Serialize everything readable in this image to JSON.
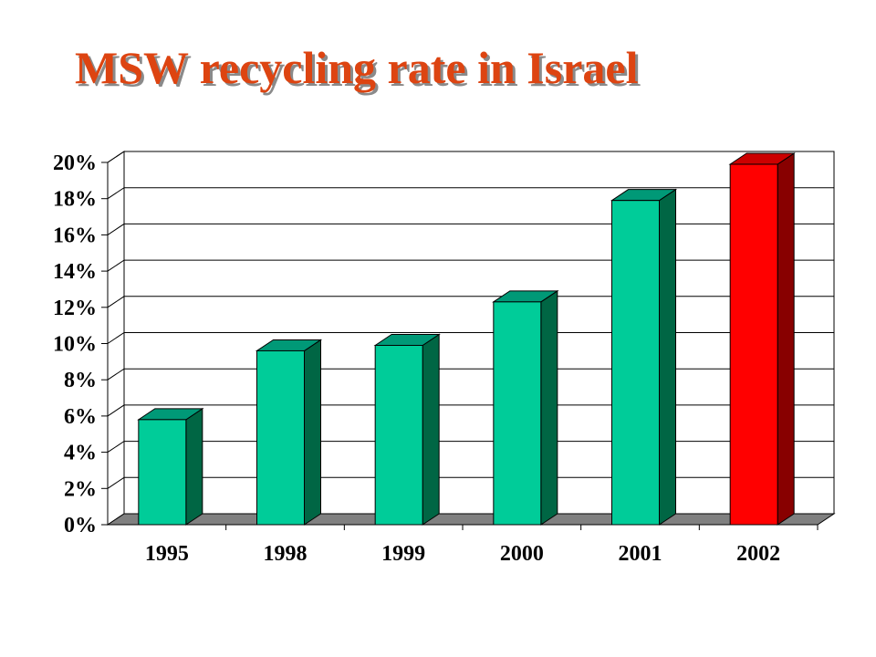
{
  "title": "MSW recycling rate in Israel",
  "chart_data": {
    "type": "bar",
    "categories": [
      "1995",
      "1998",
      "1999",
      "2000",
      "2001",
      "2002"
    ],
    "values": [
      5.8,
      9.6,
      9.9,
      12.3,
      17.9,
      19.9
    ],
    "unit": "%",
    "ylim": [
      0,
      20
    ],
    "yticks": [
      "0%",
      "2%",
      "4%",
      "6%",
      "8%",
      "10%",
      "12%",
      "14%",
      "16%",
      "18%",
      "20%"
    ],
    "grid": true,
    "legend": "none",
    "colors": {
      "bar_front": "#00cc99",
      "bar_side": "#006644",
      "bar_top": "#009977",
      "highlight_front": "#ff0000",
      "highlight_side": "#880000",
      "highlight_top": "#cc0000",
      "floor": "#808080",
      "title": "#dd4411"
    },
    "highlight_index": 5
  }
}
